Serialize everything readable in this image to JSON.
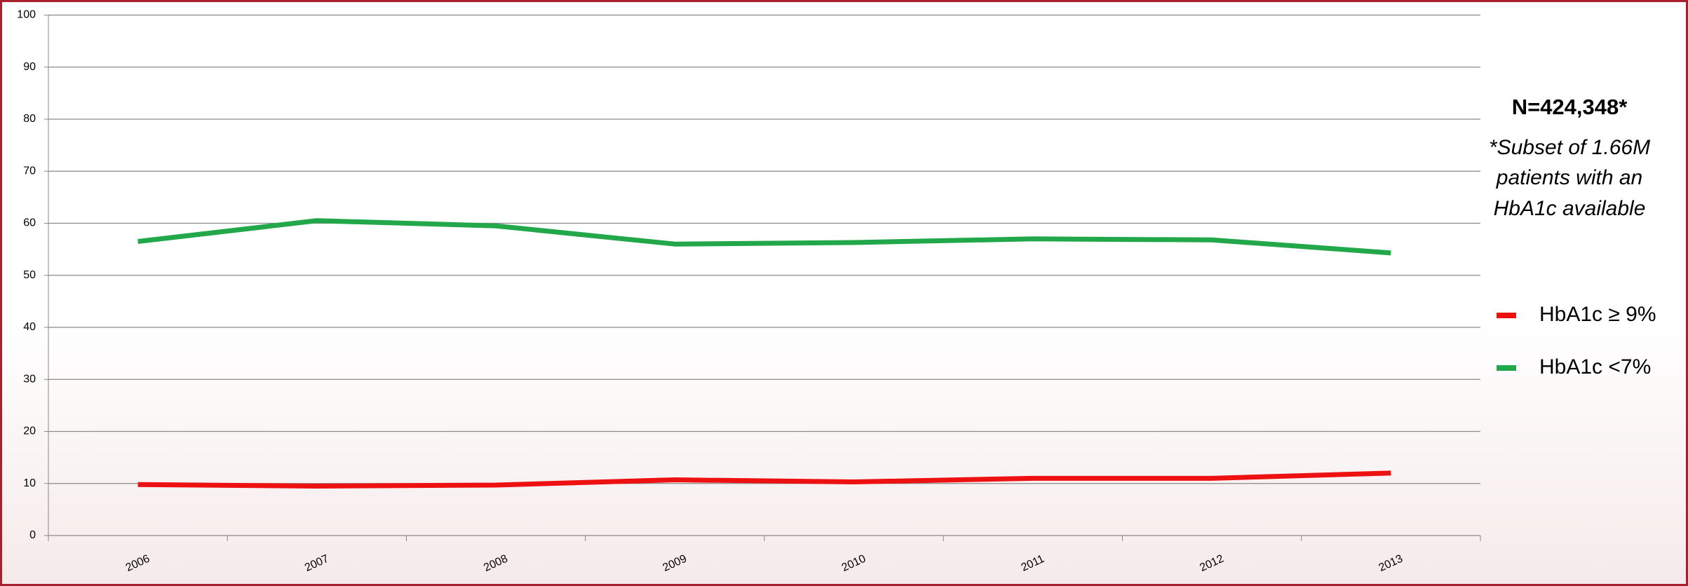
{
  "chart_data": {
    "type": "line",
    "categories": [
      "2006",
      "2007",
      "2008",
      "2009",
      "2010",
      "2011",
      "2012",
      "2013"
    ],
    "series": [
      {
        "name": "HbA1c ≥ 9%",
        "color": "#ee1111",
        "values": [
          9.8,
          9.5,
          9.7,
          10.7,
          10.3,
          11,
          11,
          12
        ]
      },
      {
        "name": "HbA1c <7%",
        "color": "#22a84a",
        "values": [
          56.5,
          60.5,
          59.5,
          56,
          56.3,
          57,
          56.8,
          54.3
        ]
      }
    ],
    "ylim": [
      0,
      100
    ],
    "yticks": [
      0,
      10,
      20,
      30,
      40,
      50,
      60,
      70,
      80,
      90,
      100
    ],
    "grid": true,
    "legend": "right",
    "annotations": [
      "N=424,348*",
      "*Subset of 1.66M",
      "patients with an",
      "HbA1c available"
    ]
  }
}
